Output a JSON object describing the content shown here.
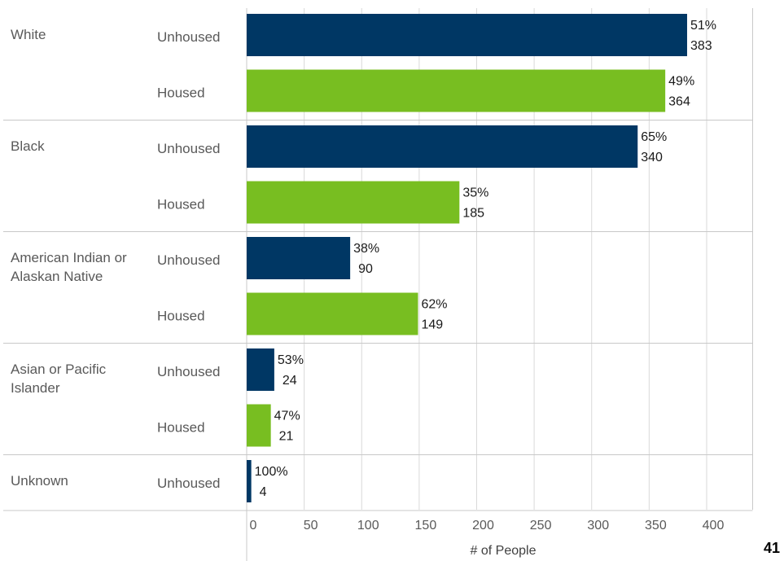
{
  "colors": {
    "unhoused": "#003764",
    "housed": "#78be21",
    "grid": "#d9d9d9",
    "divider": "#c8c8c8"
  },
  "page_number": "41",
  "chart_data": {
    "type": "bar",
    "orientation": "horizontal",
    "xlabel": "# of People",
    "xlim": [
      0,
      440
    ],
    "xticks": [
      "0",
      "50",
      "100",
      "150",
      "200",
      "250",
      "300",
      "350",
      "400"
    ],
    "grid": true,
    "groups": [
      {
        "race": [
          "White"
        ],
        "rows": [
          {
            "status": "Unhoused",
            "value": 383,
            "pct": "51%",
            "count": "383"
          },
          {
            "status": "Housed",
            "value": 364,
            "pct": "49%",
            "count": "364"
          }
        ]
      },
      {
        "race": [
          "Black"
        ],
        "rows": [
          {
            "status": "Unhoused",
            "value": 340,
            "pct": "65%",
            "count": "340"
          },
          {
            "status": "Housed",
            "value": 185,
            "pct": "35%",
            "count": "185"
          }
        ]
      },
      {
        "race": [
          "American Indian or",
          "Alaskan Native"
        ],
        "rows": [
          {
            "status": "Unhoused",
            "value": 90,
            "pct": "38%",
            "count": "90"
          },
          {
            "status": "Housed",
            "value": 149,
            "pct": "62%",
            "count": "149"
          }
        ]
      },
      {
        "race": [
          "Asian or Pacific",
          "Islander"
        ],
        "rows": [
          {
            "status": "Unhoused",
            "value": 24,
            "pct": "53%",
            "count": "24"
          },
          {
            "status": "Housed",
            "value": 21,
            "pct": "47%",
            "count": "21"
          }
        ]
      },
      {
        "race": [
          "Unknown"
        ],
        "rows": [
          {
            "status": "Unhoused",
            "value": 4,
            "pct": "100%",
            "count": "4"
          }
        ]
      }
    ]
  }
}
